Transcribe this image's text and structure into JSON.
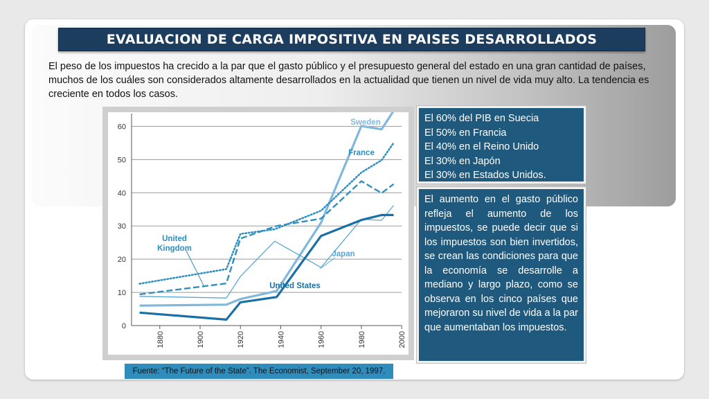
{
  "title": "EVALUACION DE CARGA IMPOSITIVA EN PAISES DESARROLLADOS",
  "intro": "El peso de los impuestos ha crecido a la par que el gasto público y el presupuesto general del estado en una gran cantidad de países, muchos de los cuáles son considerados altamente desarrollados en la actualidad que  tienen un nivel  de vida muy alto. La tendencia es creciente en todos los casos.",
  "facts": [
    "El 60% del PIB en Suecia",
    "El 50% en Francia",
    "El 40% en el Reino Unido",
    "El 30% en Japón",
    "El 30% en Estados Unidos."
  ],
  "commentary": "El aumento en el  gasto público refleja el aumento de los impuestos, se puede decir que si los impuestos   son bien invertidos, se crean las condiciones para que la economía se desarrolle a mediano y largo plazo, como se observa en los cinco países que mejoraron su nivel de vida a la par que aumentaban los impuestos.",
  "source": "Fuente: “The Future of the State”. The  Economist, September 20, 1997.",
  "colors": {
    "title_bar": "#1c3d5e",
    "box": "#1f5a7e",
    "source_bar": "#2f8dbd",
    "sweden": "#7fb8dc",
    "france": "#2d8fc0",
    "united_kingdom": "#2d8fc0",
    "japan": "#5aa7d3",
    "united_states": "#1a6fa5"
  },
  "chart_data": {
    "type": "line",
    "x_ticks": [
      1880,
      1900,
      1920,
      1940,
      1960,
      1980,
      2000
    ],
    "y_ticks": [
      0,
      10,
      20,
      30,
      40,
      50,
      60
    ],
    "xlim": [
      1866,
      2002
    ],
    "ylim": [
      0,
      63
    ],
    "grid": true,
    "series": [
      {
        "name": "Sweden",
        "style": "solid-light-thick",
        "points": [
          [
            1870,
            6
          ],
          [
            1913,
            6.3
          ],
          [
            1920,
            8
          ],
          [
            1938,
            10.4
          ],
          [
            1960,
            31
          ],
          [
            1980,
            60.1
          ],
          [
            1990,
            59.1
          ],
          [
            1996,
            64.7
          ]
        ]
      },
      {
        "name": "France",
        "style": "dotted",
        "points": [
          [
            1870,
            12.6
          ],
          [
            1913,
            17
          ],
          [
            1920,
            27.6
          ],
          [
            1937,
            29
          ],
          [
            1960,
            34.6
          ],
          [
            1980,
            46.1
          ],
          [
            1990,
            49.8
          ],
          [
            1996,
            55
          ]
        ]
      },
      {
        "name": "United Kingdom",
        "style": "dashed",
        "points": [
          [
            1870,
            9.4
          ],
          [
            1913,
            12.7
          ],
          [
            1920,
            26.2
          ],
          [
            1938,
            30
          ],
          [
            1960,
            32.2
          ],
          [
            1980,
            43.5
          ],
          [
            1990,
            39.9
          ],
          [
            1996,
            42.6
          ]
        ]
      },
      {
        "name": "Japan",
        "style": "solid-thin",
        "points": [
          [
            1870,
            8.8
          ],
          [
            1913,
            8.3
          ],
          [
            1920,
            14.8
          ],
          [
            1937,
            25.4
          ],
          [
            1960,
            17.5
          ],
          [
            1980,
            32.0
          ],
          [
            1990,
            31.7
          ],
          [
            1996,
            36.2
          ]
        ]
      },
      {
        "name": "United States",
        "style": "solid-dark-thick",
        "points": [
          [
            1870,
            3.9
          ],
          [
            1913,
            1.8
          ],
          [
            1920,
            7
          ],
          [
            1938,
            8.6
          ],
          [
            1960,
            27
          ],
          [
            1980,
            31.8
          ],
          [
            1990,
            33.3
          ],
          [
            1996,
            33.3
          ]
        ]
      }
    ]
  }
}
